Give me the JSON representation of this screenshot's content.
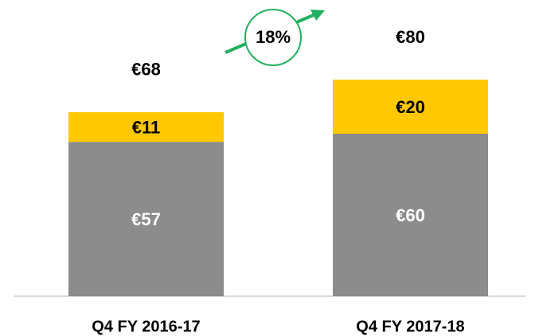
{
  "chart_data": {
    "type": "stacked_bar",
    "categories": [
      "Q4 FY 2016-17",
      "Q4 FY 2017-18"
    ],
    "series": [
      {
        "color": "#8c8c8c",
        "values": [
          57,
          60
        ],
        "value_labels": [
          "€57",
          "€60"
        ],
        "label_color": "#ffffff"
      },
      {
        "color": "#ffc800",
        "values": [
          11,
          20
        ],
        "value_labels": [
          "€11",
          "€20"
        ],
        "label_color": "#000000"
      }
    ],
    "totals": [
      68,
      80
    ],
    "total_labels": [
      "€68",
      "€80"
    ],
    "annotation": "18%",
    "annotation_color": "#22b060"
  }
}
